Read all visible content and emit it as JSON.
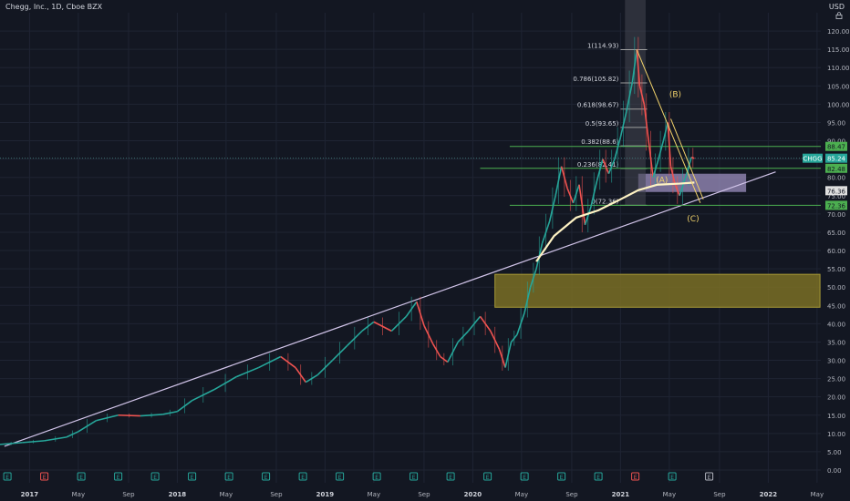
{
  "header": {
    "title": "Chegg, Inc., 1D, Cboe BZX"
  },
  "currency": "USD",
  "chart_data": {
    "type": "line",
    "ylim": [
      0,
      125
    ],
    "yticks": [
      0,
      5,
      10,
      15,
      20,
      25,
      30,
      35,
      40,
      45,
      50,
      55,
      60,
      65,
      70,
      75,
      80,
      85,
      90,
      95,
      100,
      105,
      110,
      115,
      120
    ],
    "xticks": [
      {
        "label": "2017",
        "t": 2017.0,
        "bold": true
      },
      {
        "label": "May",
        "t": 2017.33
      },
      {
        "label": "Sep",
        "t": 2017.67
      },
      {
        "label": "2018",
        "t": 2018.0,
        "bold": true
      },
      {
        "label": "May",
        "t": 2018.33
      },
      {
        "label": "Sep",
        "t": 2018.67
      },
      {
        "label": "2019",
        "t": 2019.0,
        "bold": true
      },
      {
        "label": "May",
        "t": 2019.33
      },
      {
        "label": "Sep",
        "t": 2019.67
      },
      {
        "label": "2020",
        "t": 2020.0,
        "bold": true
      },
      {
        "label": "May",
        "t": 2020.33
      },
      {
        "label": "Sep",
        "t": 2020.67
      },
      {
        "label": "2021",
        "t": 2021.0,
        "bold": true
      },
      {
        "label": "May",
        "t": 2021.33
      },
      {
        "label": "Sep",
        "t": 2021.67
      },
      {
        "label": "2022",
        "t": 2022.0,
        "bold": true
      },
      {
        "label": "May",
        "t": 2022.33
      }
    ],
    "series": [
      {
        "color_up": "#26a69a",
        "color_down": "#ef5350",
        "points": [
          [
            2016.8,
            7.0
          ],
          [
            2016.95,
            7.5
          ],
          [
            2017.1,
            8.0
          ],
          [
            2017.25,
            9.0
          ],
          [
            2017.33,
            10.5
          ],
          [
            2017.45,
            13.5
          ],
          [
            2017.6,
            15.0
          ],
          [
            2017.75,
            14.8
          ],
          [
            2017.9,
            15.2
          ],
          [
            2018.0,
            16.0
          ],
          [
            2018.1,
            19.0
          ],
          [
            2018.25,
            22.0
          ],
          [
            2018.4,
            25.5
          ],
          [
            2018.55,
            28.0
          ],
          [
            2018.7,
            31.0
          ],
          [
            2018.8,
            28.0
          ],
          [
            2018.87,
            24.0
          ],
          [
            2018.95,
            26.0
          ],
          [
            2019.05,
            30.0
          ],
          [
            2019.15,
            34.0
          ],
          [
            2019.25,
            38.0
          ],
          [
            2019.33,
            40.5
          ],
          [
            2019.45,
            38.0
          ],
          [
            2019.55,
            42.0
          ],
          [
            2019.62,
            46.0
          ],
          [
            2019.67,
            39.5
          ],
          [
            2019.73,
            34.5
          ],
          [
            2019.78,
            31.0
          ],
          [
            2019.83,
            29.5
          ],
          [
            2019.9,
            35.0
          ],
          [
            2019.97,
            38.0
          ],
          [
            2020.05,
            42.0
          ],
          [
            2020.12,
            38.0
          ],
          [
            2020.18,
            33.0
          ],
          [
            2020.22,
            28.0
          ],
          [
            2020.26,
            35.0
          ],
          [
            2020.3,
            37.0
          ],
          [
            2020.35,
            43.0
          ],
          [
            2020.39,
            50.0
          ],
          [
            2020.43,
            55.0
          ],
          [
            2020.47,
            62.0
          ],
          [
            2020.52,
            68.0
          ],
          [
            2020.56,
            75.0
          ],
          [
            2020.6,
            83.0
          ],
          [
            2020.64,
            77.0
          ],
          [
            2020.68,
            73.0
          ],
          [
            2020.72,
            78.0
          ],
          [
            2020.76,
            67.0
          ],
          [
            2020.8,
            72.0
          ],
          [
            2020.84,
            79.0
          ],
          [
            2020.88,
            85.0
          ],
          [
            2020.92,
            81.0
          ],
          [
            2020.96,
            85.0
          ],
          [
            2021.0,
            91.0
          ],
          [
            2021.04,
            98.0
          ],
          [
            2021.08,
            106.0
          ],
          [
            2021.11,
            114.93
          ],
          [
            2021.13,
            105.0
          ],
          [
            2021.16,
            100.0
          ],
          [
            2021.19,
            90.0
          ],
          [
            2021.22,
            80.0
          ],
          [
            2021.25,
            84.0
          ],
          [
            2021.29,
            90.0
          ],
          [
            2021.32,
            95.0
          ],
          [
            2021.34,
            83.0
          ],
          [
            2021.37,
            78.0
          ],
          [
            2021.4,
            75.0
          ],
          [
            2021.44,
            80.0
          ],
          [
            2021.48,
            85.5
          ],
          [
            2021.5,
            85.2
          ]
        ]
      }
    ],
    "annotations": [
      {
        "label": "1(114.93)",
        "value": 114.93
      },
      {
        "label": "0.786(105.82)",
        "value": 105.82
      },
      {
        "label": "0.618(98.67)",
        "value": 98.67
      },
      {
        "label": "0.5(93.65)",
        "value": 93.65
      },
      {
        "label": "0.382(88.6)",
        "value": 88.6
      },
      {
        "label": "0.236(82.41)",
        "value": 82.41
      },
      {
        "label": "0(72.36)",
        "value": 72.36
      },
      {
        "label": "(A)",
        "value": 78.5
      },
      {
        "label": "(B)",
        "value": 102.0
      },
      {
        "label": "(C)",
        "value": 68.0
      }
    ],
    "zones": [
      {
        "from": 44.5,
        "to": 53.5,
        "t0": 2020.15,
        "t1": 2022.35
      },
      {
        "from": 76.0,
        "to": 81.0,
        "t0": 2021.12,
        "t1": 2021.85
      }
    ],
    "price_labels": [
      {
        "label": "88.47",
        "value": 88.47
      },
      {
        "label": "85.24",
        "value": 85.24
      },
      {
        "label": "CHGG",
        "value": 85.24
      },
      {
        "label": "82.48",
        "value": 82.48
      },
      {
        "label": "76.36",
        "value": 76.36
      },
      {
        "label": "72.36",
        "value": 72.36
      }
    ],
    "earnings": [
      2016.85,
      2017.1,
      2017.35,
      2017.6,
      2017.85,
      2018.1,
      2018.35,
      2018.6,
      2018.85,
      2019.1,
      2019.35,
      2019.6,
      2019.85,
      2020.1,
      2020.35,
      2020.6,
      2020.85,
      2021.1,
      2021.35,
      2021.6
    ],
    "earnings_label": "E",
    "colors": {
      "bg": "#131722",
      "grid": "#1f2433",
      "text": "#b2b5be",
      "trend": "#d1c4e9",
      "fib": "#9e9e9e",
      "green": "#4caf50",
      "yellow": "#f2d36b",
      "wave": "#fff3c4",
      "olive": "#7a6f24",
      "purple": "#9c8fbf"
    }
  }
}
